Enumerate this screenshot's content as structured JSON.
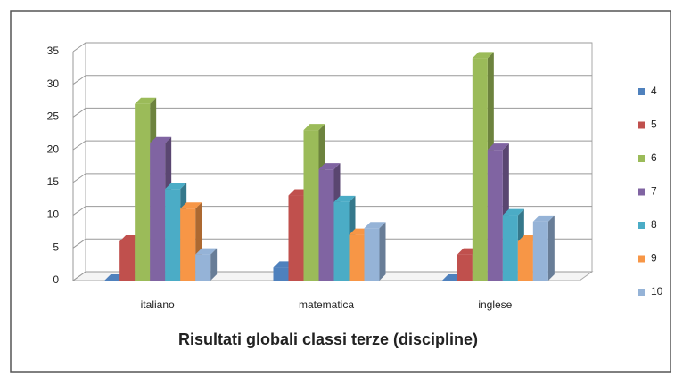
{
  "chart_data": {
    "type": "bar",
    "title": "Risultati globali classi terze (discipline)",
    "categories": [
      "italiano",
      "matematica",
      "inglese"
    ],
    "series": [
      {
        "name": "4",
        "color": "#4f81bd",
        "values": [
          0,
          2,
          0
        ]
      },
      {
        "name": "5",
        "color": "#c0504d",
        "values": [
          6,
          13,
          4
        ]
      },
      {
        "name": "6",
        "color": "#9bbb59",
        "values": [
          27,
          23,
          34
        ]
      },
      {
        "name": "7",
        "color": "#8064a2",
        "values": [
          21,
          17,
          20
        ]
      },
      {
        "name": "8",
        "color": "#4bacc6",
        "values": [
          14,
          12,
          10
        ]
      },
      {
        "name": "9",
        "color": "#f79646",
        "values": [
          11,
          7,
          6
        ]
      },
      {
        "name": "10",
        "color": "#95b3d7",
        "values": [
          4,
          8,
          9
        ]
      }
    ],
    "ylim": [
      0,
      35
    ],
    "yticks": [
      0,
      5,
      10,
      15,
      20,
      25,
      30,
      35
    ],
    "grid": true,
    "legend": "right"
  }
}
